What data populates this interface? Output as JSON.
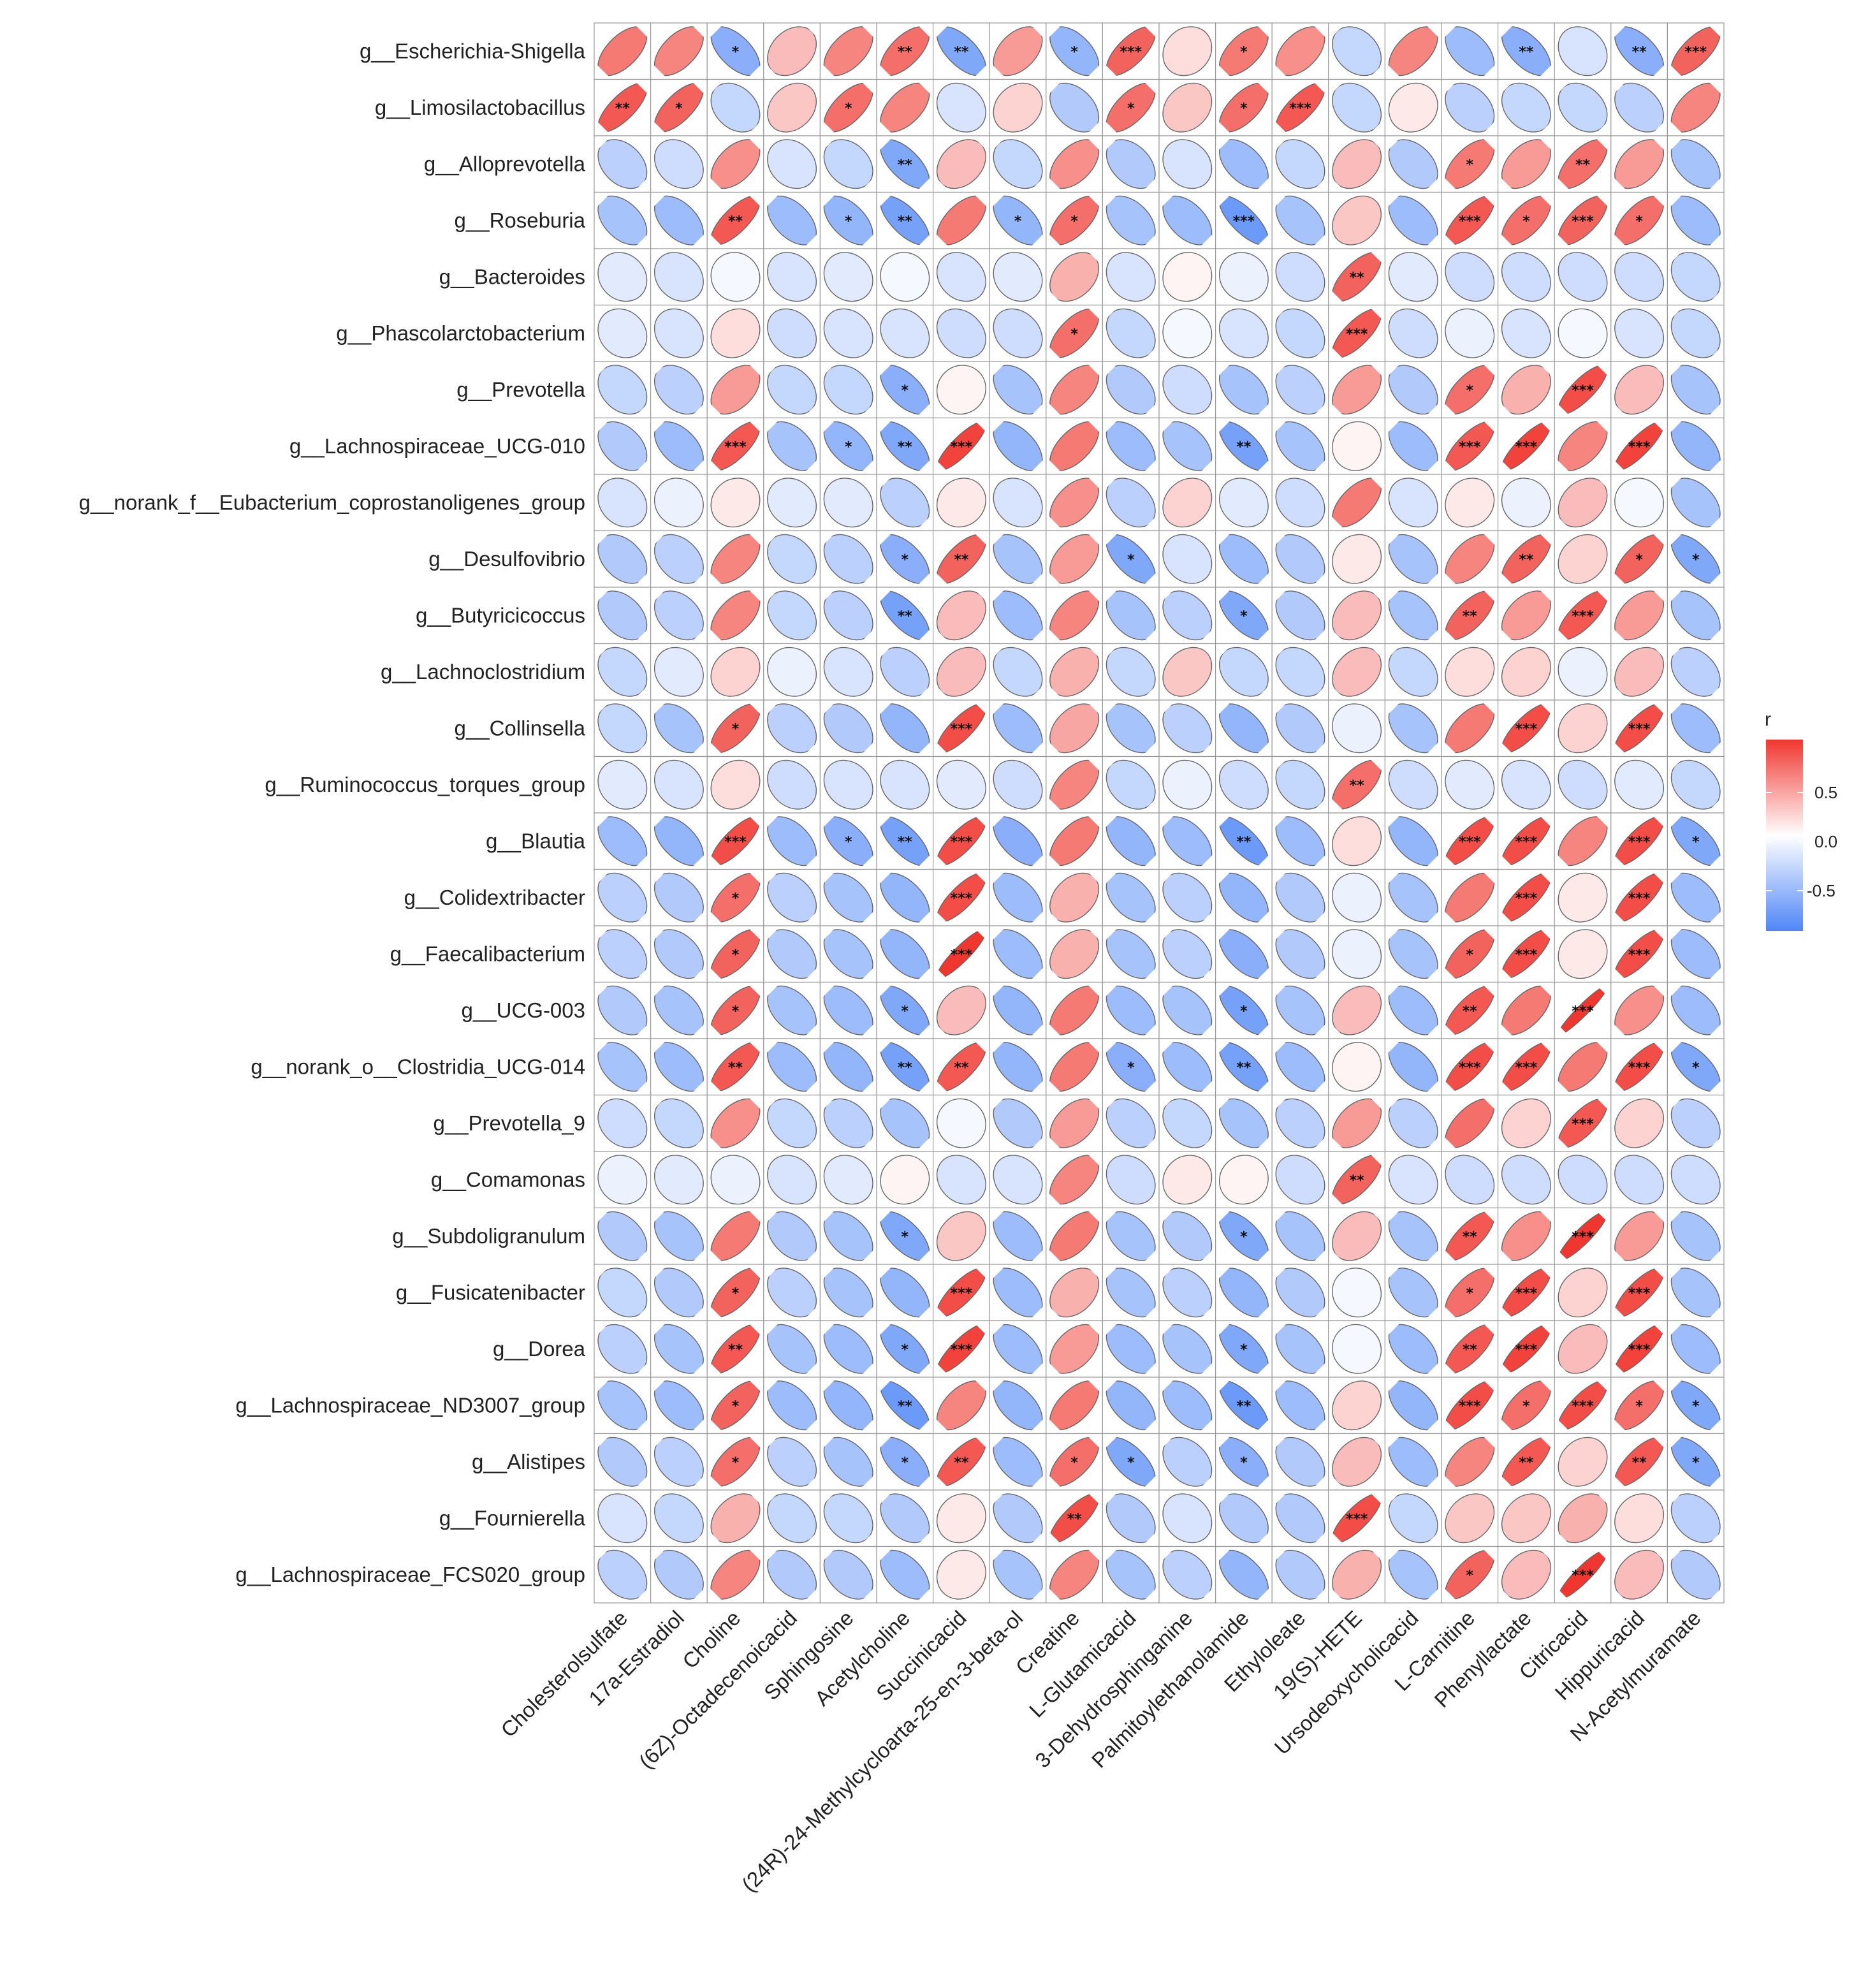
{
  "chart_data": {
    "type": "heatmap",
    "subtype": "correlation-ellipse",
    "legend": {
      "title": "r",
      "ticks": [
        "0.5",
        "0.0",
        "-0.5"
      ],
      "low_color": "#4F86F7",
      "mid_color": "#FFFFFF",
      "high_color": "#F0372F",
      "range": [
        -0.9,
        0.9
      ]
    },
    "rows": [
      "g__Escherichia-Shigella",
      "g__Limosilactobacillus",
      "g__Alloprevotella",
      "g__Roseburia",
      "g__Bacteroides",
      "g__Phascolarctobacterium",
      "g__Prevotella",
      "g__Lachnospiraceae_UCG-010",
      "g__norank_f__Eubacterium_coprostanoligenes_group",
      "g__Desulfovibrio",
      "g__Butyricicoccus",
      "g__Lachnoclostridium",
      "g__Collinsella",
      "g__Ruminococcus_torques_group",
      "g__Blautia",
      "g__Colidextribacter",
      "g__Faecalibacterium",
      "g__UCG-003",
      "g__norank_o__Clostridia_UCG-014",
      "g__Prevotella_9",
      "g__Comamonas",
      "g__Subdoligranulum",
      "g__Fusicatenibacter",
      "g__Dorea",
      "g__Lachnospiraceae_ND3007_group",
      "g__Alistipes",
      "g__Fournierella",
      "g__Lachnospiraceae_FCS020_group"
    ],
    "columns": [
      "Cholesterolsulfate",
      "17a-Estradiol",
      "Choline",
      "(6Z)-Octadecenoicacid",
      "Sphingosine",
      "Acetylcholine",
      "Succinicacid",
      "(24R)-24-Methylcycloarta-25-en-3-beta-ol",
      "Creatine",
      "L-Glutamicacid",
      "3-Dehydrosphinganine",
      "Palmitoylethanolamide",
      "Ethyloleate",
      "19(S)-HETE",
      "Ursodeoxycholicacid",
      "L-Carnitine",
      "Phenyllactate",
      "Citricacid",
      "Hippuricacid",
      "N-Acetylmuramate"
    ],
    "values": [
      [
        0.6,
        0.55,
        -0.6,
        0.3,
        0.55,
        0.65,
        -0.65,
        0.45,
        -0.55,
        0.7,
        0.15,
        0.6,
        0.5,
        -0.3,
        0.55,
        -0.5,
        -0.6,
        -0.2,
        -0.6,
        0.7
      ],
      [
        0.75,
        0.7,
        -0.3,
        0.25,
        0.65,
        0.55,
        -0.2,
        0.2,
        -0.4,
        0.65,
        0.25,
        0.65,
        0.75,
        -0.3,
        0.1,
        -0.35,
        -0.3,
        -0.3,
        -0.35,
        0.55
      ],
      [
        -0.35,
        -0.25,
        0.5,
        -0.2,
        -0.3,
        -0.65,
        0.3,
        -0.3,
        0.5,
        -0.4,
        -0.2,
        -0.5,
        -0.3,
        0.3,
        -0.4,
        0.6,
        0.45,
        0.65,
        0.45,
        -0.45
      ],
      [
        -0.45,
        -0.5,
        0.75,
        -0.5,
        -0.55,
        -0.7,
        0.6,
        -0.55,
        0.65,
        -0.45,
        -0.5,
        -0.75,
        -0.45,
        0.25,
        -0.5,
        0.75,
        0.65,
        0.7,
        0.65,
        -0.5
      ],
      [
        -0.15,
        -0.2,
        -0.05,
        -0.2,
        -0.15,
        -0.05,
        -0.2,
        -0.15,
        0.35,
        -0.2,
        0.05,
        -0.1,
        -0.25,
        0.7,
        -0.15,
        -0.25,
        -0.25,
        -0.25,
        -0.25,
        -0.3
      ],
      [
        -0.15,
        -0.2,
        0.15,
        -0.25,
        -0.2,
        -0.2,
        -0.25,
        -0.25,
        0.65,
        -0.3,
        -0.05,
        -0.2,
        -0.3,
        0.75,
        -0.25,
        -0.1,
        -0.2,
        -0.05,
        -0.2,
        -0.3
      ],
      [
        -0.3,
        -0.35,
        0.45,
        -0.3,
        -0.3,
        -0.6,
        0.05,
        -0.45,
        0.55,
        -0.4,
        -0.25,
        -0.45,
        -0.35,
        0.45,
        -0.4,
        0.65,
        0.35,
        0.8,
        0.3,
        -0.45
      ],
      [
        -0.4,
        -0.5,
        0.75,
        -0.45,
        -0.55,
        -0.65,
        0.85,
        -0.55,
        0.6,
        -0.5,
        -0.45,
        -0.7,
        -0.45,
        0.05,
        -0.5,
        0.75,
        0.85,
        0.55,
        0.85,
        -0.55
      ],
      [
        -0.2,
        -0.1,
        0.1,
        -0.15,
        -0.15,
        -0.35,
        0.1,
        -0.2,
        0.5,
        -0.35,
        0.2,
        -0.15,
        -0.25,
        0.6,
        -0.2,
        0.1,
        -0.1,
        0.3,
        -0.05,
        -0.45
      ],
      [
        -0.4,
        -0.35,
        0.55,
        -0.3,
        -0.35,
        -0.6,
        0.7,
        -0.45,
        0.45,
        -0.65,
        -0.2,
        -0.5,
        -0.4,
        0.1,
        -0.45,
        0.55,
        0.7,
        0.2,
        0.7,
        -0.65
      ],
      [
        -0.4,
        -0.35,
        0.55,
        -0.3,
        -0.35,
        -0.7,
        0.3,
        -0.5,
        0.55,
        -0.45,
        -0.35,
        -0.65,
        -0.4,
        0.3,
        -0.45,
        0.7,
        0.45,
        0.75,
        0.45,
        -0.45
      ],
      [
        -0.3,
        -0.15,
        0.2,
        -0.1,
        -0.2,
        -0.35,
        0.3,
        -0.3,
        0.35,
        -0.3,
        0.25,
        -0.3,
        -0.3,
        0.3,
        -0.3,
        0.15,
        0.2,
        -0.1,
        0.3,
        -0.35
      ],
      [
        -0.3,
        -0.45,
        0.7,
        -0.35,
        -0.4,
        -0.55,
        0.8,
        -0.5,
        0.4,
        -0.45,
        -0.35,
        -0.55,
        -0.4,
        -0.1,
        -0.45,
        0.6,
        0.8,
        0.2,
        0.8,
        -0.5
      ],
      [
        -0.15,
        -0.2,
        0.15,
        -0.25,
        -0.2,
        -0.2,
        -0.15,
        -0.25,
        0.55,
        -0.3,
        -0.1,
        -0.25,
        -0.3,
        0.65,
        -0.25,
        -0.15,
        -0.2,
        -0.25,
        -0.15,
        -0.3
      ],
      [
        -0.5,
        -0.55,
        0.8,
        -0.5,
        -0.6,
        -0.7,
        0.8,
        -0.6,
        0.6,
        -0.55,
        -0.5,
        -0.75,
        -0.5,
        0.15,
        -0.55,
        0.8,
        0.8,
        0.55,
        0.8,
        -0.65
      ],
      [
        -0.35,
        -0.4,
        0.65,
        -0.35,
        -0.45,
        -0.55,
        0.8,
        -0.5,
        0.35,
        -0.45,
        -0.35,
        -0.55,
        -0.4,
        -0.1,
        -0.45,
        0.6,
        0.8,
        0.1,
        0.8,
        -0.5
      ],
      [
        -0.35,
        -0.4,
        0.7,
        -0.4,
        -0.45,
        -0.55,
        0.9,
        -0.5,
        0.35,
        -0.45,
        -0.35,
        -0.6,
        -0.4,
        -0.1,
        -0.45,
        0.7,
        0.8,
        0.1,
        0.8,
        -0.5
      ],
      [
        -0.4,
        -0.45,
        0.7,
        -0.45,
        -0.5,
        -0.65,
        0.3,
        -0.55,
        0.6,
        -0.5,
        -0.45,
        -0.7,
        -0.45,
        0.3,
        -0.5,
        0.75,
        0.6,
        0.95,
        0.5,
        -0.5
      ],
      [
        -0.45,
        -0.5,
        0.75,
        -0.5,
        -0.55,
        -0.7,
        0.75,
        -0.55,
        0.6,
        -0.6,
        -0.5,
        -0.7,
        -0.5,
        0.05,
        -0.55,
        0.8,
        0.8,
        0.6,
        0.8,
        -0.65
      ],
      [
        -0.25,
        -0.3,
        0.5,
        -0.3,
        -0.35,
        -0.45,
        -0.05,
        -0.4,
        0.45,
        -0.35,
        -0.3,
        -0.45,
        -0.35,
        0.45,
        -0.35,
        0.65,
        0.2,
        0.75,
        0.2,
        -0.35
      ],
      [
        -0.1,
        -0.15,
        -0.1,
        -0.2,
        -0.15,
        0.05,
        -0.2,
        -0.2,
        0.55,
        -0.25,
        0.1,
        0.05,
        -0.25,
        0.7,
        -0.2,
        -0.25,
        -0.25,
        -0.25,
        -0.25,
        -0.25
      ],
      [
        -0.4,
        -0.45,
        0.6,
        -0.4,
        -0.45,
        -0.65,
        0.25,
        -0.5,
        0.6,
        -0.45,
        -0.4,
        -0.65,
        -0.45,
        0.3,
        -0.45,
        0.75,
        0.5,
        0.9,
        0.45,
        -0.45
      ],
      [
        -0.3,
        -0.4,
        0.7,
        -0.35,
        -0.45,
        -0.55,
        0.8,
        -0.5,
        0.35,
        -0.45,
        -0.35,
        -0.55,
        -0.4,
        -0.05,
        -0.45,
        0.65,
        0.8,
        0.2,
        0.8,
        -0.45
      ],
      [
        -0.35,
        -0.45,
        0.75,
        -0.45,
        -0.5,
        -0.65,
        0.85,
        -0.5,
        0.45,
        -0.5,
        -0.45,
        -0.65,
        -0.45,
        -0.05,
        -0.5,
        0.75,
        0.85,
        0.3,
        0.85,
        -0.5
      ],
      [
        -0.45,
        -0.5,
        0.7,
        -0.5,
        -0.55,
        -0.75,
        0.55,
        -0.55,
        0.6,
        -0.55,
        -0.5,
        -0.75,
        -0.5,
        0.2,
        -0.55,
        0.8,
        0.65,
        0.8,
        0.65,
        -0.65
      ],
      [
        -0.4,
        -0.35,
        0.65,
        -0.35,
        -0.45,
        -0.6,
        0.75,
        -0.5,
        0.65,
        -0.65,
        -0.35,
        -0.6,
        -0.4,
        0.3,
        -0.5,
        0.55,
        0.75,
        0.2,
        0.75,
        -0.65
      ],
      [
        -0.2,
        -0.3,
        0.35,
        -0.3,
        -0.3,
        -0.4,
        0.1,
        -0.4,
        0.8,
        -0.4,
        -0.2,
        -0.4,
        -0.4,
        0.8,
        -0.3,
        0.25,
        0.25,
        0.35,
        0.15,
        -0.35
      ],
      [
        -0.35,
        -0.4,
        0.55,
        -0.4,
        -0.4,
        -0.5,
        0.1,
        -0.45,
        0.55,
        -0.45,
        -0.35,
        -0.55,
        -0.4,
        0.35,
        -0.45,
        0.7,
        0.3,
        0.9,
        0.3,
        -0.4
      ]
    ],
    "significance": [
      [
        "",
        "",
        "*",
        "",
        "",
        "**",
        "**",
        "",
        "*",
        "***",
        "",
        "*",
        "",
        "",
        "",
        "",
        "**",
        "",
        "**",
        "***"
      ],
      [
        "**",
        "*",
        "",
        "",
        "*",
        "",
        "",
        "",
        "",
        "*",
        "",
        "*",
        "***",
        "",
        "",
        "",
        "",
        "",
        "",
        ""
      ],
      [
        "",
        "",
        "",
        "",
        "",
        "**",
        "",
        "",
        "",
        "",
        "",
        "",
        "",
        "",
        "",
        "*",
        "",
        "**",
        "",
        ""
      ],
      [
        "",
        "",
        "**",
        "",
        "*",
        "**",
        "",
        "*",
        "*",
        "",
        "",
        "***",
        "",
        "",
        "",
        "***",
        "*",
        "***",
        "*",
        ""
      ],
      [
        "",
        "",
        "",
        "",
        "",
        "",
        "",
        "",
        "",
        "",
        "",
        "",
        "",
        "**",
        "",
        "",
        "",
        "",
        "",
        ""
      ],
      [
        "",
        "",
        "",
        "",
        "",
        "",
        "",
        "",
        "*",
        "",
        "",
        "",
        "",
        "***",
        "",
        "",
        "",
        "",
        "",
        ""
      ],
      [
        "",
        "",
        "",
        "",
        "",
        "*",
        "",
        "",
        "",
        "",
        "",
        "",
        "",
        "",
        "",
        "*",
        "",
        "***",
        "",
        ""
      ],
      [
        "",
        "",
        "***",
        "",
        "*",
        "**",
        "***",
        "",
        "",
        "",
        "",
        "**",
        "",
        "",
        "",
        "***",
        "***",
        "",
        "***",
        ""
      ],
      [
        "",
        "",
        "",
        "",
        "",
        "",
        "",
        "",
        "",
        "",
        "",
        "",
        "",
        "",
        "",
        "",
        "",
        "",
        "",
        ""
      ],
      [
        "",
        "",
        "",
        "",
        "",
        "*",
        "**",
        "",
        "",
        "*",
        "",
        "",
        "",
        "",
        "",
        "",
        "**",
        "",
        "*",
        "*"
      ],
      [
        "",
        "",
        "",
        "",
        "",
        "**",
        "",
        "",
        "",
        "",
        "",
        "*",
        "",
        "",
        "",
        "**",
        "",
        "***",
        "",
        ""
      ],
      [
        "",
        "",
        "",
        "",
        "",
        "",
        "",
        "",
        "",
        "",
        "",
        "",
        "",
        "",
        "",
        "",
        "",
        "",
        "",
        ""
      ],
      [
        "",
        "",
        "*",
        "",
        "",
        "",
        "***",
        "",
        "",
        "",
        "",
        "",
        "",
        "",
        "",
        "",
        "***",
        "",
        "***",
        ""
      ],
      [
        "",
        "",
        "",
        "",
        "",
        "",
        "",
        "",
        "",
        "",
        "",
        "",
        "",
        "**",
        "",
        "",
        "",
        "",
        "",
        ""
      ],
      [
        "",
        "",
        "***",
        "",
        "*",
        "**",
        "***",
        "",
        "",
        "",
        "",
        "**",
        "",
        "",
        "",
        "***",
        "***",
        "",
        "***",
        "*"
      ],
      [
        "",
        "",
        "*",
        "",
        "",
        "",
        "***",
        "",
        "",
        "",
        "",
        "",
        "",
        "",
        "",
        "",
        "***",
        "",
        "***",
        ""
      ],
      [
        "",
        "",
        "*",
        "",
        "",
        "",
        "***",
        "",
        "",
        "",
        "",
        "",
        "",
        "",
        "",
        "*",
        "***",
        "",
        "***",
        ""
      ],
      [
        "",
        "",
        "*",
        "",
        "",
        "*",
        "",
        "",
        "",
        "",
        "",
        "*",
        "",
        "",
        "",
        "**",
        "",
        "***",
        "",
        ""
      ],
      [
        "",
        "",
        "**",
        "",
        "",
        "**",
        "**",
        "",
        "",
        "*",
        "",
        "**",
        "",
        "",
        "",
        "***",
        "***",
        "",
        "***",
        "*"
      ],
      [
        "",
        "",
        "",
        "",
        "",
        "",
        "",
        "",
        "",
        "",
        "",
        "",
        "",
        "",
        "",
        "",
        "",
        "***",
        "",
        ""
      ],
      [
        "",
        "",
        "",
        "",
        "",
        "",
        "",
        "",
        "",
        "",
        "",
        "",
        "",
        "**",
        "",
        "",
        "",
        "",
        "",
        ""
      ],
      [
        "",
        "",
        "",
        "",
        "",
        "*",
        "",
        "",
        "",
        "",
        "",
        "*",
        "",
        "",
        "",
        "**",
        "",
        "***",
        "",
        ""
      ],
      [
        "",
        "",
        "*",
        "",
        "",
        "",
        "***",
        "",
        "",
        "",
        "",
        "",
        "",
        "",
        "",
        "*",
        "***",
        "",
        "***",
        ""
      ],
      [
        "",
        "",
        "**",
        "",
        "",
        "*",
        "***",
        "",
        "",
        "",
        "",
        "*",
        "",
        "",
        "",
        "**",
        "***",
        "",
        "***",
        ""
      ],
      [
        "",
        "",
        "*",
        "",
        "",
        "**",
        "",
        "",
        "",
        "",
        "",
        "**",
        "",
        "",
        "",
        "***",
        "*",
        "***",
        "*",
        "*"
      ],
      [
        "",
        "",
        "*",
        "",
        "",
        "*",
        "**",
        "",
        "*",
        "*",
        "",
        "*",
        "",
        "",
        "",
        "",
        "**",
        "",
        "**",
        "*"
      ],
      [
        "",
        "",
        "",
        "",
        "",
        "",
        "",
        "",
        "**",
        "",
        "",
        "",
        "",
        "***",
        "",
        "",
        "",
        "",
        "",
        ""
      ],
      [
        "",
        "",
        "",
        "",
        "",
        "",
        "",
        "",
        "",
        "",
        "",
        "",
        "",
        "",
        "",
        "*",
        "",
        "***",
        "",
        ""
      ]
    ]
  }
}
